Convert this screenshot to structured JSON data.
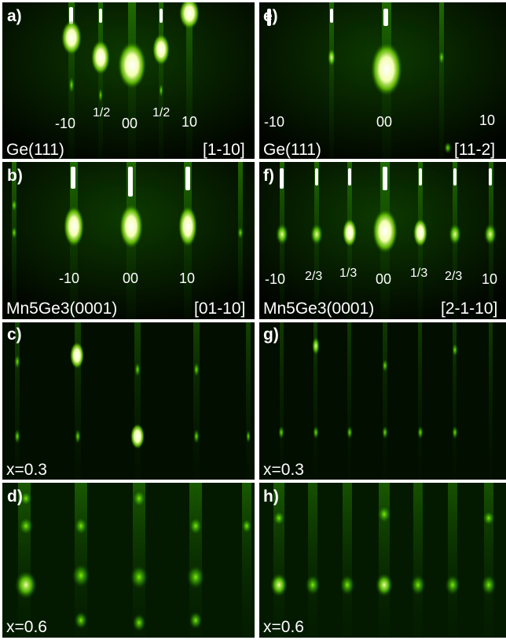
{
  "colors": {
    "background": "#010500",
    "streak": "#00ff00",
    "glow": "#ffffff"
  },
  "panels": {
    "a": {
      "label": "a)",
      "substrate": "Ge(111)",
      "direction": "[1-10]",
      "indices": [
        "-10",
        "1/2",
        "00",
        "1/2",
        "10"
      ]
    },
    "b": {
      "label": "b)",
      "substrate": "Mn5Ge3(0001)",
      "direction": "[01-10]",
      "indices": [
        "-10",
        "00",
        "10"
      ]
    },
    "c": {
      "label": "c)",
      "composition": "x=0.3"
    },
    "d": {
      "label": "d)",
      "composition": "x=0.6"
    },
    "e": {
      "label": "e)",
      "substrate": "Ge(111)",
      "direction": "[11-2]",
      "indices": [
        "-10",
        "00",
        "10"
      ]
    },
    "f": {
      "label": "f)",
      "substrate": "Mn5Ge3(0001)",
      "direction": "[2-1-10]",
      "indices": [
        "-10",
        "2/3",
        "1/3",
        "00",
        "1/3",
        "2/3",
        "10"
      ]
    },
    "g": {
      "label": "g)",
      "composition": "x=0.3"
    },
    "h": {
      "label": "h)",
      "composition": "x=0.6"
    }
  }
}
